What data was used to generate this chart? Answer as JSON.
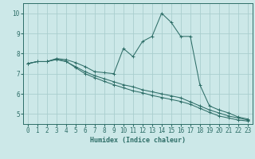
{
  "title": "",
  "xlabel": "Humidex (Indice chaleur)",
  "bg_color": "#cce8e8",
  "line_color": "#2e6e68",
  "grid_color": "#aacece",
  "xlim": [
    -0.5,
    23.5
  ],
  "ylim": [
    4.5,
    10.5
  ],
  "yticks": [
    5,
    6,
    7,
    8,
    9,
    10
  ],
  "xticks": [
    0,
    1,
    2,
    3,
    4,
    5,
    6,
    7,
    8,
    9,
    10,
    11,
    12,
    13,
    14,
    15,
    16,
    17,
    18,
    19,
    20,
    21,
    22,
    23
  ],
  "series1_x": [
    0,
    1,
    2,
    3,
    4,
    5,
    6,
    7,
    8,
    9,
    10,
    11,
    12,
    13,
    14,
    15,
    16,
    17,
    18,
    19,
    20,
    21,
    22,
    23
  ],
  "series1_y": [
    7.5,
    7.6,
    7.6,
    7.75,
    7.7,
    7.55,
    7.35,
    7.1,
    7.05,
    7.0,
    8.25,
    7.85,
    8.6,
    8.85,
    10.0,
    9.55,
    8.85,
    8.85,
    6.45,
    5.4,
    5.2,
    5.05,
    4.85,
    4.75
  ],
  "series2_x": [
    0,
    1,
    2,
    3,
    4,
    5,
    6,
    7,
    8,
    9,
    10,
    11,
    12,
    13,
    14,
    15,
    16,
    17,
    18,
    19,
    20,
    21,
    22,
    23
  ],
  "series2_y": [
    7.5,
    7.6,
    7.6,
    7.7,
    7.6,
    7.35,
    7.1,
    6.9,
    6.75,
    6.6,
    6.45,
    6.35,
    6.2,
    6.1,
    6.0,
    5.9,
    5.8,
    5.6,
    5.4,
    5.2,
    5.05,
    4.9,
    4.8,
    4.7
  ],
  "series3_x": [
    0,
    1,
    2,
    3,
    4,
    5,
    6,
    7,
    8,
    9,
    10,
    11,
    12,
    13,
    14,
    15,
    16,
    17,
    18,
    19,
    20,
    21,
    22,
    23
  ],
  "series3_y": [
    7.5,
    7.6,
    7.6,
    7.72,
    7.62,
    7.3,
    7.0,
    6.8,
    6.62,
    6.45,
    6.3,
    6.15,
    6.05,
    5.92,
    5.82,
    5.72,
    5.62,
    5.48,
    5.28,
    5.08,
    4.9,
    4.8,
    4.7,
    4.65
  ],
  "lw": 0.75,
  "ms": 2.5
}
